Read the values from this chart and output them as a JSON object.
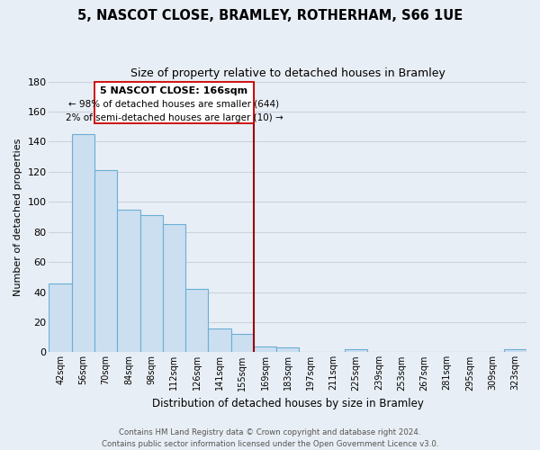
{
  "title": "5, NASCOT CLOSE, BRAMLEY, ROTHERHAM, S66 1UE",
  "subtitle": "Size of property relative to detached houses in Bramley",
  "xlabel": "Distribution of detached houses by size in Bramley",
  "ylabel": "Number of detached properties",
  "bar_color": "#ccdff0",
  "bar_edge_color": "#6aaed6",
  "background_color": "#e8eef5",
  "grid_color": "#c8d4e0",
  "annotation_line_color": "#990000",
  "annotation_box_edge_color": "#cc0000",
  "categories": [
    "42sqm",
    "56sqm",
    "70sqm",
    "84sqm",
    "98sqm",
    "112sqm",
    "126sqm",
    "141sqm",
    "155sqm",
    "169sqm",
    "183sqm",
    "197sqm",
    "211sqm",
    "225sqm",
    "239sqm",
    "253sqm",
    "267sqm",
    "281sqm",
    "295sqm",
    "309sqm",
    "323sqm"
  ],
  "values": [
    46,
    145,
    121,
    95,
    91,
    85,
    42,
    16,
    12,
    4,
    3,
    0,
    0,
    2,
    0,
    0,
    0,
    0,
    0,
    0,
    2
  ],
  "ylim": [
    0,
    180
  ],
  "yticks": [
    0,
    20,
    40,
    60,
    80,
    100,
    120,
    140,
    160,
    180
  ],
  "annotation_label": "5 NASCOT CLOSE: 166sqm",
  "annotation_smaller": "← 98% of detached houses are smaller (644)",
  "annotation_larger": "2% of semi-detached houses are larger (10) →",
  "footer1": "Contains HM Land Registry data © Crown copyright and database right 2024.",
  "footer2": "Contains public sector information licensed under the Open Government Licence v3.0."
}
